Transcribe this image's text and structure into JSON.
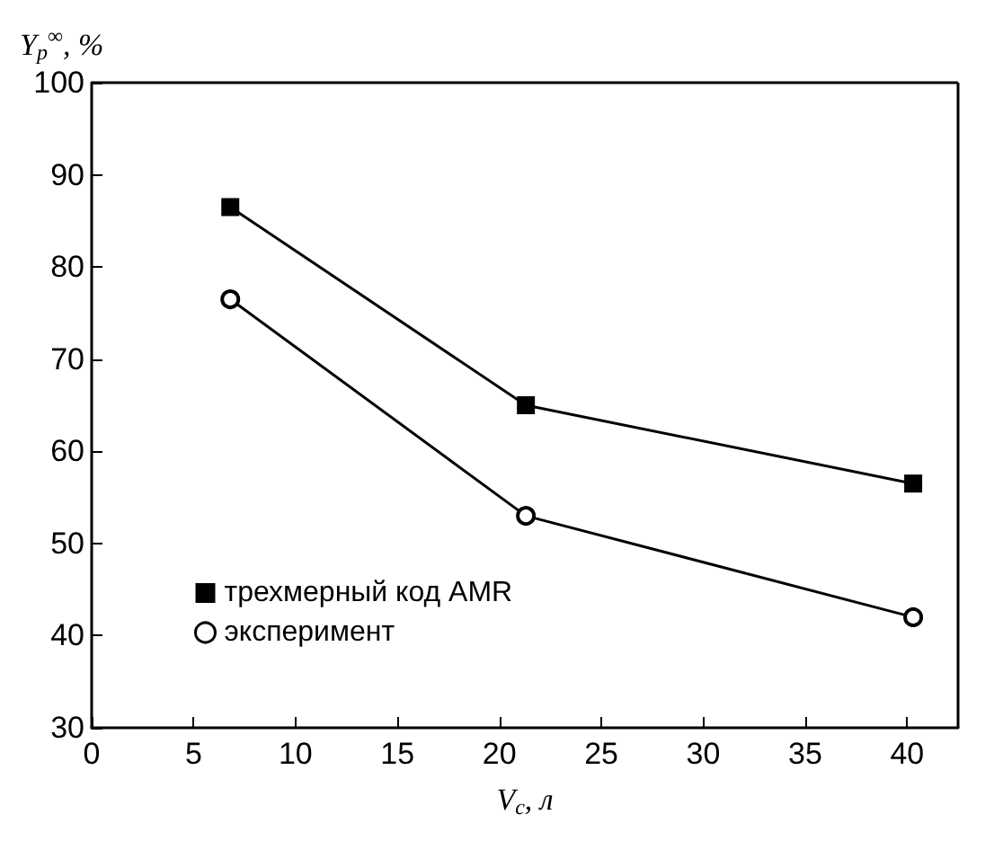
{
  "chart_data": {
    "type": "line",
    "xlabel": "V$_{c}$, л",
    "ylabel": "Y$_{p}$$^{∞}$, %",
    "x": [
      6.8,
      21.3,
      40.3
    ],
    "series": [
      {
        "name": "трехмерный код AMR",
        "color": "#000000",
        "marker": "square",
        "values": [
          86.5,
          65,
          56.5
        ]
      },
      {
        "name": "эксперимент",
        "color": "#000000",
        "marker": "circle",
        "values": [
          76.5,
          53,
          42
        ]
      }
    ],
    "xlim": [
      0,
      42.5
    ],
    "xticks": [
      0,
      5,
      10,
      15,
      20,
      25,
      30,
      35,
      40
    ],
    "ylim": [
      30,
      100
    ],
    "yticks": [
      30,
      40,
      50,
      60,
      70,
      80,
      90,
      100
    ],
    "grid": false,
    "legend": "bottom left",
    "line_style": "solid"
  }
}
